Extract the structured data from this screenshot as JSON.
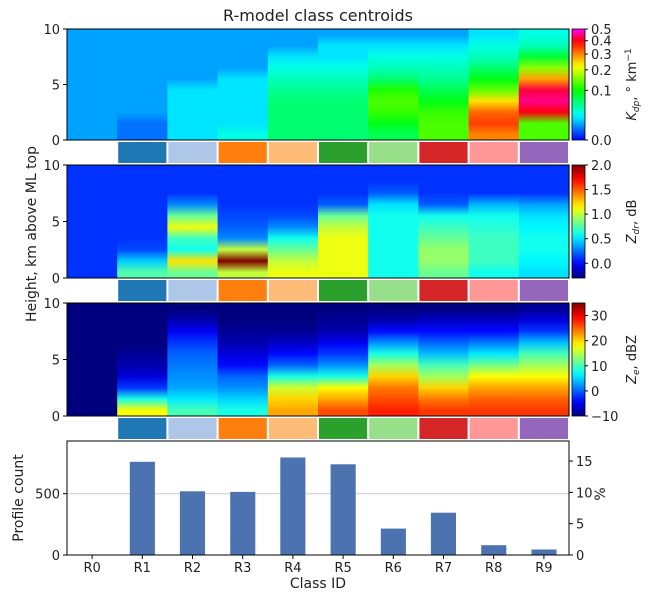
{
  "chart_data": {
    "type": "heatmap",
    "title": "R-model class centroids",
    "xlabel": "Class ID",
    "categories": [
      "R0",
      "R1",
      "R2",
      "R3",
      "R4",
      "R5",
      "R6",
      "R7",
      "R8",
      "R9"
    ],
    "class_colors": [
      "#ffffff",
      "#1f77b4",
      "#aec7e8",
      "#ff7f0e",
      "#ffbb78",
      "#2ca02c",
      "#98df8a",
      "#d62728",
      "#ff9896",
      "#9467bd"
    ],
    "shared_ylabel": "Height, km above ML top",
    "heights_km": [
      0.5,
      1.5,
      2.5,
      3.5,
      4.5,
      5.5,
      6.5,
      7.5,
      8.5,
      9.5
    ],
    "panels": [
      {
        "id": "kdp",
        "ylim": [
          0,
          10
        ],
        "yticks": [
          "0",
          "5",
          "10"
        ],
        "colorbar": {
          "label": "K_dp, ° km⁻¹",
          "label_main": "K",
          "label_sub": "dp",
          "label_rest": ", ° km",
          "label_sup": "−1",
          "ticks": [
            "0.0",
            "0.1",
            "0.2",
            "0.3",
            "0.4",
            "0.5"
          ],
          "tick_values": [
            0.0,
            0.1,
            0.2,
            0.3,
            0.4,
            0.5
          ],
          "scale": "sqrt",
          "vmin": 0.0,
          "vmax": 0.5
        },
        "values_by_class_bottom_to_top": [
          [
            0.01,
            0.01,
            0.01,
            0.01,
            0.01,
            0.01,
            0.01,
            0.01,
            0.01,
            0.01
          ],
          [
            0.005,
            0.005,
            0.01,
            0.01,
            0.01,
            0.01,
            0.01,
            0.01,
            0.01,
            0.01
          ],
          [
            0.02,
            0.02,
            0.02,
            0.02,
            0.02,
            0.01,
            0.01,
            0.01,
            0.01,
            0.01
          ],
          [
            0.03,
            0.02,
            0.02,
            0.02,
            0.02,
            0.02,
            0.01,
            0.01,
            0.01,
            0.01
          ],
          [
            0.06,
            0.06,
            0.06,
            0.06,
            0.05,
            0.04,
            0.03,
            0.02,
            0.01,
            0.01
          ],
          [
            0.06,
            0.06,
            0.06,
            0.06,
            0.05,
            0.04,
            0.03,
            0.02,
            0.02,
            0.01
          ],
          [
            0.07,
            0.09,
            0.12,
            0.13,
            0.11,
            0.06,
            0.04,
            0.03,
            0.02,
            0.01
          ],
          [
            0.13,
            0.13,
            0.12,
            0.09,
            0.07,
            0.05,
            0.04,
            0.03,
            0.02,
            0.01
          ],
          [
            0.3,
            0.35,
            0.32,
            0.24,
            0.14,
            0.09,
            0.06,
            0.04,
            0.03,
            0.02
          ],
          [
            0.13,
            0.13,
            0.4,
            0.45,
            0.42,
            0.28,
            0.16,
            0.08,
            0.04,
            0.03
          ]
        ]
      },
      {
        "id": "zdr",
        "ylim": [
          0,
          10
        ],
        "yticks": [
          "0",
          "5",
          "10"
        ],
        "colorbar": {
          "label": "Z_dr, dB",
          "label_main": "Z",
          "label_sub": "dr",
          "label_rest": ", dB",
          "label_sup": "",
          "ticks": [
            "0.0",
            "0.5",
            "1.0",
            "1.5",
            "2.0"
          ],
          "tick_values": [
            0.0,
            0.5,
            1.0,
            1.5,
            2.0
          ],
          "scale": "linear",
          "vmin": -0.3,
          "vmax": 2.0
        },
        "values_by_class_bottom_to_top": [
          [
            0.1,
            0.1,
            0.1,
            0.1,
            0.1,
            0.1,
            0.1,
            0.1,
            0.1,
            0.1
          ],
          [
            0.75,
            0.45,
            0.15,
            0.1,
            0.1,
            0.1,
            0.1,
            0.1,
            0.1,
            0.1
          ],
          [
            0.8,
            1.2,
            0.6,
            0.7,
            1.1,
            0.8,
            0.3,
            0.1,
            0.1,
            0.1
          ],
          [
            1.0,
            2.0,
            1.0,
            0.3,
            0.2,
            0.15,
            0.1,
            0.1,
            0.1,
            0.1
          ],
          [
            1.1,
            1.0,
            0.8,
            0.6,
            0.3,
            0.15,
            0.1,
            0.1,
            0.1,
            0.1
          ],
          [
            1.1,
            1.1,
            1.1,
            1.1,
            1.0,
            0.8,
            0.2,
            0.1,
            0.1,
            0.1
          ],
          [
            0.6,
            0.6,
            0.6,
            0.6,
            0.6,
            0.6,
            0.5,
            0.2,
            0.1,
            0.1
          ],
          [
            0.8,
            0.9,
            0.9,
            0.8,
            0.7,
            0.6,
            0.2,
            0.1,
            0.1,
            0.1
          ],
          [
            0.6,
            0.7,
            0.7,
            0.7,
            0.65,
            0.6,
            0.4,
            0.1,
            0.1,
            0.1
          ],
          [
            0.5,
            0.55,
            0.6,
            0.6,
            0.55,
            0.5,
            0.35,
            0.1,
            0.1,
            0.1
          ]
        ]
      },
      {
        "id": "ze",
        "ylim": [
          0,
          10
        ],
        "yticks": [
          "0",
          "5",
          "10"
        ],
        "colorbar": {
          "label": "Z_e, dBZ",
          "label_main": "Z",
          "label_sub": "e",
          "label_rest": ", dBZ",
          "label_sup": "",
          "ticks": [
            "−10",
            "0",
            "10",
            "20",
            "30"
          ],
          "tick_values": [
            -10,
            0,
            10,
            20,
            30
          ],
          "scale": "linear",
          "vmin": -10,
          "vmax": 35
        },
        "values_by_class_bottom_to_top": [
          [
            -10,
            -10,
            -10,
            -10,
            -10,
            -10,
            -10,
            -10,
            -10,
            -10
          ],
          [
            18,
            8,
            -2,
            -6,
            -8,
            -9,
            -10,
            -10,
            -10,
            -10
          ],
          [
            10,
            6,
            3,
            2,
            1,
            0,
            -2,
            -5,
            -8,
            -10
          ],
          [
            8,
            5,
            2,
            0,
            -4,
            -6,
            -8,
            -9,
            -10,
            -10
          ],
          [
            22,
            20,
            16,
            8,
            0,
            -4,
            -7,
            -9,
            -10,
            -10
          ],
          [
            26,
            22,
            18,
            8,
            2,
            -2,
            -5,
            -8,
            -9,
            -10
          ],
          [
            28,
            26,
            24,
            20,
            14,
            8,
            2,
            -4,
            -8,
            -10
          ],
          [
            27,
            24,
            20,
            14,
            10,
            4,
            0,
            -4,
            -7,
            -10
          ],
          [
            27,
            25,
            22,
            18,
            12,
            6,
            1,
            -4,
            -7,
            -10
          ],
          [
            27,
            25,
            22,
            18,
            14,
            10,
            4,
            -2,
            -6,
            -9
          ]
        ]
      }
    ],
    "bar": {
      "type": "bar",
      "ylabel": "Profile count",
      "ylabel_right": "%",
      "ylim": [
        0,
        930
      ],
      "yticks": [
        "0",
        "500"
      ],
      "ytick_values": [
        0,
        500
      ],
      "right_ticks": [
        "0",
        "5",
        "10",
        "15"
      ],
      "right_tick_values": [
        0,
        5,
        10,
        15
      ],
      "right_max_percent": 18.2,
      "values": [
        0,
        760,
        520,
        515,
        795,
        740,
        215,
        345,
        80,
        45
      ],
      "bar_color": "#4c72b0",
      "grid": true
    },
    "jet_colormap": [
      "#00007f",
      "#0000ff",
      "#007fff",
      "#00ffff",
      "#7fff7f",
      "#ffff00",
      "#ff7f00",
      "#ff0000",
      "#7f0000"
    ],
    "kdp_colormap": [
      "#0000ff",
      "#007fff",
      "#00ffff",
      "#00ff7f",
      "#00ff00",
      "#7fff00",
      "#ffff00",
      "#ff7f00",
      "#ff0000",
      "#ff00ff"
    ]
  }
}
